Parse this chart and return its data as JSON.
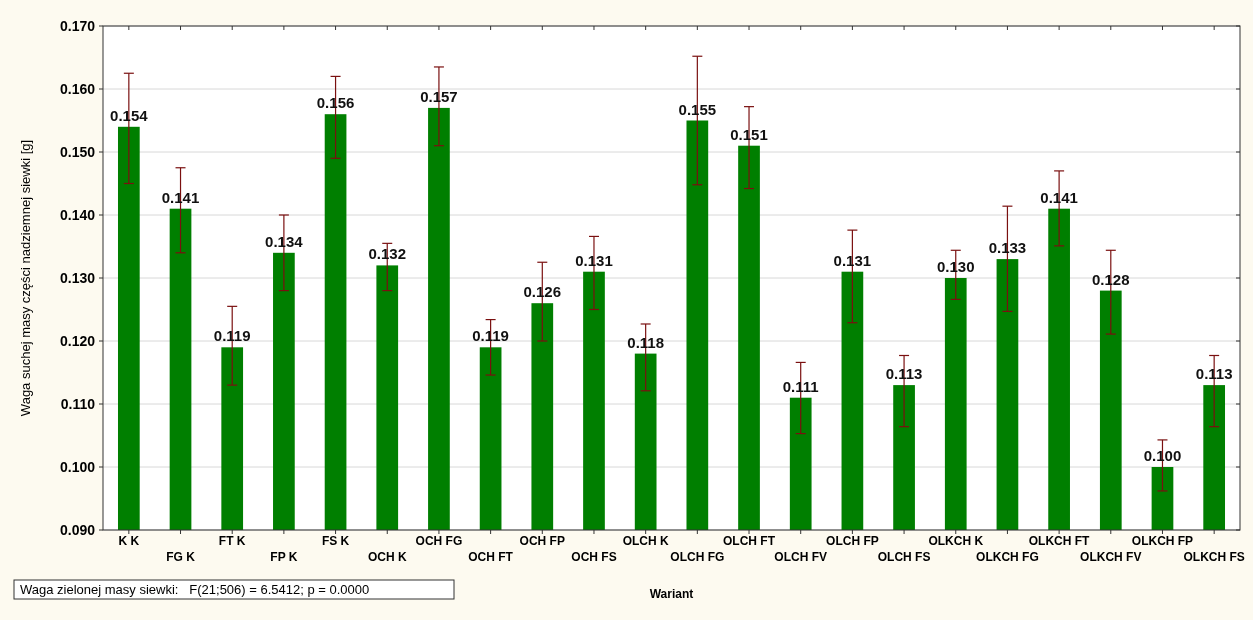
{
  "chart_data": {
    "type": "bar",
    "xlabel": "Wariant",
    "ylabel": "Waga suchej masy części nadziemnej siewki [g]",
    "categories": [
      "K K",
      "FG K",
      "FT K",
      "FP K",
      "FS K",
      "OCH K",
      "OCH FG",
      "OCH FT",
      "OCH FP",
      "OCH FS",
      "OLCH K",
      "OLCH FG",
      "OLCH FT",
      "OLCH FV",
      "OLCH FP",
      "OLCH FS",
      "OLKCH K",
      "OLKCH FG",
      "OLKCH FT",
      "OLKCH FV",
      "OLKCH FP",
      "OLKCH FS"
    ],
    "values": [
      0.154,
      0.141,
      0.119,
      0.134,
      0.156,
      0.132,
      0.157,
      0.119,
      0.126,
      0.131,
      0.118,
      0.155,
      0.151,
      0.111,
      0.131,
      0.113,
      0.13,
      0.133,
      0.141,
      0.128,
      0.1,
      0.113
    ],
    "errors": [
      [
        0.145,
        0.1625
      ],
      [
        0.134,
        0.1475
      ],
      [
        0.113,
        0.1255
      ],
      [
        0.128,
        0.14
      ],
      [
        0.149,
        0.162
      ],
      [
        0.128,
        0.1355
      ],
      [
        0.151,
        0.1635
      ],
      [
        0.1146,
        0.1234
      ],
      [
        0.12,
        0.1325
      ],
      [
        0.125,
        0.1366
      ],
      [
        0.1121,
        0.1227
      ],
      [
        0.1448,
        0.1652
      ],
      [
        0.1442,
        0.1572
      ],
      [
        0.1053,
        0.1166
      ],
      [
        0.1229,
        0.1376
      ],
      [
        0.1064,
        0.1177
      ],
      [
        0.1266,
        0.1344
      ],
      [
        0.1247,
        0.1414
      ],
      [
        0.1351,
        0.147
      ],
      [
        0.1211,
        0.1344
      ],
      [
        0.0962,
        0.1043
      ],
      [
        0.1064,
        0.1177
      ]
    ],
    "value_labels": [
      "0.154",
      "0.141",
      "0.119",
      "0.134",
      "0.156",
      "0.132",
      "0.157",
      "0.119",
      "0.126",
      "0.131",
      "0.118",
      "0.155",
      "0.151",
      "0.111",
      "0.131",
      "0.113",
      "0.130",
      "0.133",
      "0.141",
      "0.128",
      "0.100",
      "0.113"
    ],
    "color": "#007f00",
    "grid": "y",
    "ylim": [
      0.09,
      0.17
    ],
    "yticks": [
      {
        "value": 0.09,
        "label": "0.090"
      },
      {
        "value": 0.1,
        "label": "0.100"
      },
      {
        "value": 0.11,
        "label": "0.110"
      },
      {
        "value": 0.12,
        "label": "0.120"
      },
      {
        "value": 0.13,
        "label": "0.130"
      },
      {
        "value": 0.14,
        "label": "0.140"
      },
      {
        "value": 0.15,
        "label": "0.150"
      },
      {
        "value": 0.16,
        "label": "0.160"
      },
      {
        "value": 0.17,
        "label": "0.170"
      }
    ],
    "annotations": [
      "Waga zielonej masy siewki:   F(21;506) = 6.5412; p = 0.0000"
    ]
  }
}
